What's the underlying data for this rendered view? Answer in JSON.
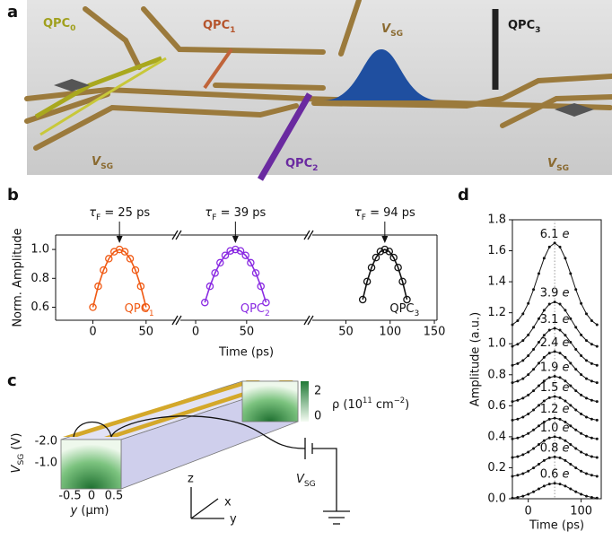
{
  "panel_labels": [
    "a",
    "b",
    "c",
    "d"
  ],
  "panel_a": {
    "labels": [
      {
        "text": "QPC",
        "sub": "0"
      },
      {
        "text": "QPC",
        "sub": "1"
      },
      {
        "text": "V",
        "sub": "SG"
      },
      {
        "text": "QPC",
        "sub": "3"
      },
      {
        "text": "V",
        "sub": "SG"
      },
      {
        "text": "QPC",
        "sub": "2"
      },
      {
        "text": "V",
        "sub": "SG"
      }
    ]
  },
  "chart_data": [
    {
      "type": "line",
      "ylabel": "Norm. Amplitude",
      "xlabel": "Time (ps)",
      "ylim": [
        0.51,
        1.1
      ],
      "yticks": [
        0.6,
        0.8,
        {
          "value": 1,
          "label": "1.0"
        }
      ],
      "series": [
        {
          "name": "QPC1",
          "color": "#f05a14",
          "xlim": [
            -35,
            78
          ],
          "xticks": [
            0,
            50
          ],
          "annotation": {
            "symbol": "τ",
            "sub": "F",
            "text": " = 25 ps"
          },
          "x": [
            0,
            5,
            10,
            15,
            20,
            25,
            30,
            35,
            40,
            45,
            50
          ],
          "values": [
            0.6,
            0.745,
            0.857,
            0.936,
            0.984,
            1.0,
            0.984,
            0.936,
            0.857,
            0.745,
            0.6
          ]
        },
        {
          "name": "QPC2",
          "color": "#8a2be2",
          "xlim": [
            -15,
            110
          ],
          "xticks": [
            0,
            50
          ],
          "annotation": {
            "symbol": "τ",
            "sub": "F",
            "text": " = 39 ps"
          },
          "x": [
            9,
            14,
            19,
            24,
            29,
            34,
            39,
            44,
            49,
            54,
            59,
            64,
            69
          ],
          "values": [
            0.633,
            0.745,
            0.837,
            0.908,
            0.959,
            0.99,
            1.0,
            0.99,
            0.959,
            0.908,
            0.837,
            0.745,
            0.633
          ]
        },
        {
          "name": "QPC3",
          "color": "#111111",
          "xlim": [
            12,
            153
          ],
          "xticks": [
            50,
            100,
            150
          ],
          "annotation": {
            "symbol": "τ",
            "sub": "F",
            "text": " = 94 ps"
          },
          "x": [
            69,
            74,
            79,
            84,
            89,
            94,
            99,
            104,
            109,
            114,
            119
          ],
          "values": [
            0.653,
            0.778,
            0.875,
            0.944,
            0.986,
            1.0,
            0.986,
            0.944,
            0.875,
            0.778,
            0.653
          ]
        }
      ]
    },
    {
      "type": "line",
      "ylabel": "Amplitude (a.u.)",
      "xlabel": "Time (ps)",
      "xlim": [
        -30,
        138
      ],
      "xticks": [
        0,
        100
      ],
      "vline": 50,
      "ylim": [
        0,
        1.8
      ],
      "yticks": [
        {
          "value": 0,
          "label": "0.0"
        },
        0.2,
        0.4,
        0.6,
        0.8,
        {
          "value": 1,
          "label": "1.0"
        },
        1.2,
        1.4,
        1.6,
        1.8
      ],
      "x": [
        -30,
        -20,
        -10,
        0,
        10,
        20,
        30,
        40,
        50,
        60,
        70,
        80,
        90,
        100,
        110,
        120,
        130
      ],
      "series": [
        {
          "name": "6.1 e",
          "color": "#111111",
          "values": [
            1.123,
            1.149,
            1.193,
            1.26,
            1.35,
            1.453,
            1.552,
            1.624,
            1.65,
            1.624,
            1.552,
            1.453,
            1.35,
            1.26,
            1.193,
            1.149,
            1.123
          ]
        },
        {
          "name": "3.9 e",
          "color": "#111111",
          "values": [
            0.983,
            0.997,
            1.021,
            1.057,
            1.106,
            1.162,
            1.216,
            1.256,
            1.27,
            1.256,
            1.216,
            1.162,
            1.106,
            1.057,
            1.021,
            0.997,
            0.983
          ]
        },
        {
          "name": "3.1 e",
          "color": "#111111",
          "values": [
            0.861,
            0.872,
            0.892,
            0.923,
            0.964,
            1.01,
            1.055,
            1.088,
            1.1,
            1.088,
            1.055,
            1.01,
            0.964,
            0.923,
            0.892,
            0.872,
            0.861
          ]
        },
        {
          "name": "2.4 e",
          "color": "#111111",
          "values": [
            0.749,
            0.759,
            0.775,
            0.801,
            0.835,
            0.875,
            0.912,
            0.94,
            0.95,
            0.94,
            0.912,
            0.875,
            0.835,
            0.801,
            0.775,
            0.759,
            0.749
          ]
        },
        {
          "name": "1.9 e",
          "color": "#111111",
          "values": [
            0.627,
            0.635,
            0.649,
            0.669,
            0.697,
            0.729,
            0.76,
            0.782,
            0.79,
            0.782,
            0.76,
            0.729,
            0.697,
            0.669,
            0.649,
            0.635,
            0.627
          ]
        },
        {
          "name": "1.5 e",
          "color": "#111111",
          "values": [
            0.507,
            0.514,
            0.527,
            0.547,
            0.573,
            0.603,
            0.631,
            0.652,
            0.66,
            0.652,
            0.631,
            0.603,
            0.573,
            0.547,
            0.527,
            0.514,
            0.507
          ]
        },
        {
          "name": "1.2 e",
          "color": "#111111",
          "values": [
            0.386,
            0.392,
            0.404,
            0.421,
            0.444,
            0.47,
            0.495,
            0.513,
            0.52,
            0.513,
            0.495,
            0.47,
            0.444,
            0.421,
            0.404,
            0.392,
            0.386
          ]
        },
        {
          "name": "1.0 e",
          "color": "#111111",
          "values": [
            0.266,
            0.272,
            0.284,
            0.301,
            0.324,
            0.35,
            0.375,
            0.393,
            0.4,
            0.393,
            0.375,
            0.35,
            0.324,
            0.301,
            0.284,
            0.272,
            0.266
          ]
        },
        {
          "name": "0.8 e",
          "color": "#111111",
          "values": [
            0.145,
            0.152,
            0.162,
            0.178,
            0.199,
            0.223,
            0.247,
            0.264,
            0.27,
            0.264,
            0.247,
            0.223,
            0.199,
            0.178,
            0.162,
            0.152,
            0.145
          ]
        },
        {
          "name": "0.6 e",
          "color": "#111111",
          "values": [
            0.004,
            0.009,
            0.017,
            0.029,
            0.045,
            0.064,
            0.082,
            0.095,
            0.1,
            0.095,
            0.082,
            0.064,
            0.045,
            0.029,
            0.017,
            0.009,
            0.004
          ]
        }
      ]
    }
  ],
  "panel_c": {
    "yticks": [
      "-2.0",
      "-1.0"
    ],
    "ylabel": {
      "text": "V",
      "sub": "SG",
      "unit": " (V)"
    },
    "xticks": [
      "-0.5",
      "0",
      "0.5"
    ],
    "xlabel": {
      "text": "y",
      "unit": " (μm)"
    },
    "colorbar_ticks": [
      "2",
      "0"
    ],
    "colorbar_label": {
      "text": "ρ (10",
      "sup": "11",
      "mid": " cm",
      "sup2": "−2",
      "end": ")"
    },
    "source_label": {
      "text": "V",
      "sub": "SG"
    },
    "axes": [
      "z",
      "x",
      "y"
    ]
  }
}
